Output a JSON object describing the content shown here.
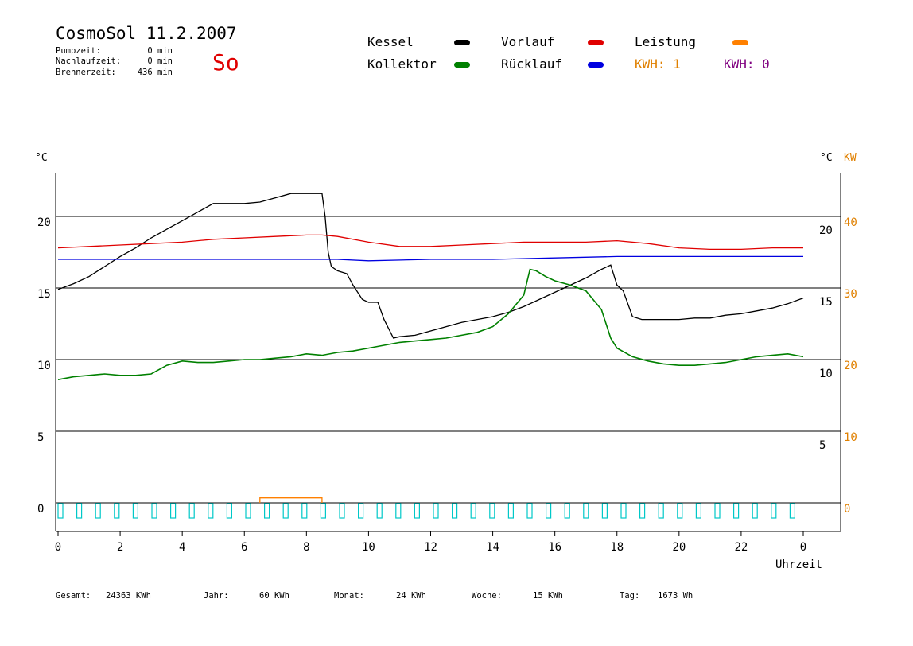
{
  "header": {
    "title": "CosmoSol 11.2.2007",
    "day": "So",
    "info": [
      {
        "label": "Pumpzeit:",
        "value": "0 min"
      },
      {
        "label": "Nachlaufzeit:",
        "value": "0 min"
      },
      {
        "label": "Brennerzeit:",
        "value": "436 min"
      }
    ]
  },
  "legend": {
    "items": [
      {
        "label": "Kessel",
        "color": "#000000"
      },
      {
        "label": "Vorlauf",
        "color": "#e00000"
      },
      {
        "label": "Leistung",
        "color": "#ff8000"
      },
      {
        "label": "Kollektor",
        "color": "#008000"
      },
      {
        "label": "Rücklauf",
        "color": "#0000e0"
      }
    ],
    "kwh1": "KWH: 1",
    "kwh0": "KWH: 0",
    "kwh1_color": "#e08000",
    "kwh0_color": "#800080"
  },
  "footer": {
    "gesamt_label": "Gesamt:",
    "gesamt_value": "24363 KWh",
    "jahr_label": "Jahr:",
    "jahr_value": "60 KWh",
    "monat_label": "Monat:",
    "monat_value": "24 KWh",
    "woche_label": "Woche:",
    "woche_value": "15 KWh",
    "tag_label": "Tag:",
    "tag_value": "1673 Wh"
  },
  "chart_data": {
    "type": "line",
    "xlabel": "Uhrzeit",
    "y_left_unit": "°C",
    "y_right_unit": "°C",
    "y_right2_unit": "KW",
    "x_ticks": [
      "0",
      "2",
      "4",
      "6",
      "8",
      "10",
      "12",
      "14",
      "16",
      "18",
      "20",
      "22",
      "0"
    ],
    "x_range": [
      0,
      24
    ],
    "y_left_ticks": [
      "0",
      "5",
      "10",
      "15",
      "20"
    ],
    "y_right_ticks": [
      "5",
      "10",
      "15",
      "20"
    ],
    "y_right2_ticks": [
      "0",
      "10",
      "20",
      "30",
      "40"
    ],
    "ylim": [
      -2,
      23
    ],
    "gridlines_y": [
      0,
      5,
      10,
      15,
      20
    ],
    "grid": true,
    "series": [
      {
        "name": "Kessel",
        "color": "#000000",
        "points": [
          [
            0,
            14.9
          ],
          [
            0.5,
            15.3
          ],
          [
            1,
            15.8
          ],
          [
            1.5,
            16.5
          ],
          [
            2,
            17.2
          ],
          [
            2.5,
            17.8
          ],
          [
            3,
            18.5
          ],
          [
            3.5,
            19.1
          ],
          [
            4,
            19.7
          ],
          [
            4.5,
            20.3
          ],
          [
            5,
            20.9
          ],
          [
            5.5,
            20.9
          ],
          [
            6,
            20.9
          ],
          [
            6.5,
            21.0
          ],
          [
            7,
            21.3
          ],
          [
            7.5,
            21.6
          ],
          [
            8,
            21.6
          ],
          [
            8.5,
            21.6
          ],
          [
            8.6,
            20.0
          ],
          [
            8.7,
            17.5
          ],
          [
            8.8,
            16.5
          ],
          [
            9,
            16.2
          ],
          [
            9.3,
            16.0
          ],
          [
            9.5,
            15.2
          ],
          [
            9.8,
            14.2
          ],
          [
            10,
            14.0
          ],
          [
            10.3,
            14.0
          ],
          [
            10.5,
            12.8
          ],
          [
            10.8,
            11.5
          ],
          [
            11,
            11.6
          ],
          [
            11.5,
            11.7
          ],
          [
            12,
            12.0
          ],
          [
            12.5,
            12.3
          ],
          [
            13,
            12.6
          ],
          [
            13.5,
            12.8
          ],
          [
            14,
            13.0
          ],
          [
            14.5,
            13.3
          ],
          [
            15,
            13.7
          ],
          [
            15.5,
            14.2
          ],
          [
            16,
            14.7
          ],
          [
            16.5,
            15.2
          ],
          [
            17,
            15.7
          ],
          [
            17.5,
            16.3
          ],
          [
            17.8,
            16.6
          ],
          [
            18,
            15.2
          ],
          [
            18.2,
            14.8
          ],
          [
            18.5,
            13.0
          ],
          [
            18.8,
            12.8
          ],
          [
            19,
            12.8
          ],
          [
            19.5,
            12.8
          ],
          [
            20,
            12.8
          ],
          [
            20.5,
            12.9
          ],
          [
            21,
            12.9
          ],
          [
            21.5,
            13.1
          ],
          [
            22,
            13.2
          ],
          [
            22.5,
            13.4
          ],
          [
            23,
            13.6
          ],
          [
            23.5,
            13.9
          ],
          [
            24,
            14.3
          ]
        ]
      },
      {
        "name": "Vorlauf",
        "color": "#e00000",
        "points": [
          [
            0,
            17.8
          ],
          [
            1,
            17.9
          ],
          [
            2,
            18.0
          ],
          [
            3,
            18.1
          ],
          [
            4,
            18.2
          ],
          [
            5,
            18.4
          ],
          [
            6,
            18.5
          ],
          [
            7,
            18.6
          ],
          [
            8,
            18.7
          ],
          [
            8.5,
            18.7
          ],
          [
            9,
            18.6
          ],
          [
            10,
            18.2
          ],
          [
            11,
            17.9
          ],
          [
            12,
            17.9
          ],
          [
            13,
            18.0
          ],
          [
            14,
            18.1
          ],
          [
            15,
            18.2
          ],
          [
            16,
            18.2
          ],
          [
            17,
            18.2
          ],
          [
            18,
            18.3
          ],
          [
            19,
            18.1
          ],
          [
            20,
            17.8
          ],
          [
            21,
            17.7
          ],
          [
            22,
            17.7
          ],
          [
            23,
            17.8
          ],
          [
            24,
            17.8
          ]
        ]
      },
      {
        "name": "Rücklauf",
        "color": "#0000e0",
        "points": [
          [
            0,
            17.0
          ],
          [
            2,
            17.0
          ],
          [
            4,
            17.0
          ],
          [
            6,
            17.0
          ],
          [
            8,
            17.0
          ],
          [
            9,
            17.0
          ],
          [
            10,
            16.9
          ],
          [
            12,
            17.0
          ],
          [
            14,
            17.0
          ],
          [
            16,
            17.1
          ],
          [
            18,
            17.2
          ],
          [
            20,
            17.2
          ],
          [
            22,
            17.2
          ],
          [
            24,
            17.2
          ]
        ]
      },
      {
        "name": "Kollektor",
        "color": "#008000",
        "points": [
          [
            0,
            8.6
          ],
          [
            0.5,
            8.8
          ],
          [
            1,
            8.9
          ],
          [
            1.5,
            9.0
          ],
          [
            2,
            8.9
          ],
          [
            2.5,
            8.9
          ],
          [
            3,
            9.0
          ],
          [
            3.5,
            9.6
          ],
          [
            4,
            9.9
          ],
          [
            4.5,
            9.8
          ],
          [
            5,
            9.8
          ],
          [
            5.5,
            9.9
          ],
          [
            6,
            10.0
          ],
          [
            6.5,
            10.0
          ],
          [
            7,
            10.1
          ],
          [
            7.5,
            10.2
          ],
          [
            8,
            10.4
          ],
          [
            8.5,
            10.3
          ],
          [
            9,
            10.5
          ],
          [
            9.5,
            10.6
          ],
          [
            10,
            10.8
          ],
          [
            10.5,
            11.0
          ],
          [
            11,
            11.2
          ],
          [
            11.5,
            11.3
          ],
          [
            12,
            11.4
          ],
          [
            12.5,
            11.5
          ],
          [
            13,
            11.7
          ],
          [
            13.5,
            11.9
          ],
          [
            14,
            12.3
          ],
          [
            14.5,
            13.2
          ],
          [
            15,
            14.5
          ],
          [
            15.2,
            16.3
          ],
          [
            15.4,
            16.2
          ],
          [
            15.7,
            15.8
          ],
          [
            16,
            15.5
          ],
          [
            16.5,
            15.2
          ],
          [
            17,
            14.8
          ],
          [
            17.5,
            13.5
          ],
          [
            17.8,
            11.5
          ],
          [
            18,
            10.8
          ],
          [
            18.5,
            10.2
          ],
          [
            19,
            9.9
          ],
          [
            19.5,
            9.7
          ],
          [
            20,
            9.6
          ],
          [
            20.5,
            9.6
          ],
          [
            21,
            9.7
          ],
          [
            21.5,
            9.8
          ],
          [
            22,
            10.0
          ],
          [
            22.5,
            10.2
          ],
          [
            23,
            10.3
          ],
          [
            23.5,
            10.4
          ],
          [
            24,
            10.2
          ]
        ]
      },
      {
        "name": "Leistung",
        "color": "#ff8000",
        "points": [
          [
            6.5,
            0
          ],
          [
            6.5,
            0.35
          ],
          [
            8.5,
            0.35
          ],
          [
            8.5,
            0
          ]
        ]
      }
    ]
  }
}
